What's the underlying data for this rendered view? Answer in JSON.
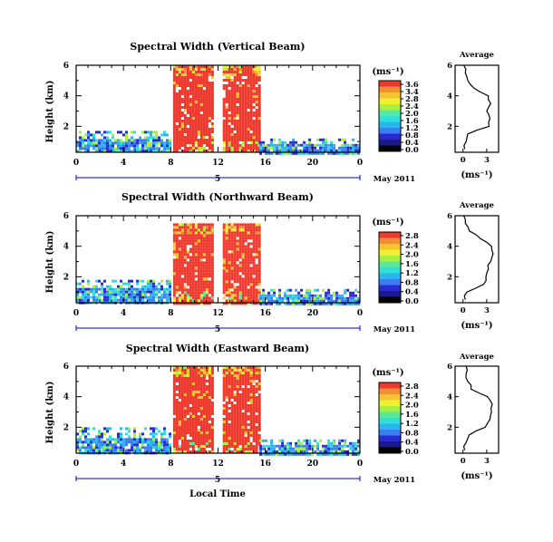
{
  "colors": {
    "palette": [
      "#ffffff",
      "#000000",
      "#1a1a8a",
      "#2a2ad0",
      "#3a7ef2",
      "#29b6f0",
      "#2fe0d8",
      "#58e8a0",
      "#a8f040",
      "#f0f030",
      "#f6c431",
      "#f08f30",
      "#ee3a2e"
    ],
    "line": "#000000",
    "time_bar": "#0000cc"
  },
  "global": {
    "x_axis_title": "Local Time"
  },
  "panels": [
    {
      "title": "Spectral Width (Vertical Beam)",
      "ylabel": "Height (km)",
      "x_tick_labels": [
        "0",
        "4",
        "8",
        "12",
        "16",
        "20",
        "0"
      ],
      "y_tick_labels": [
        "6",
        "4",
        "2"
      ],
      "date_mark": "5",
      "date_label": "May 2011",
      "colorbar": {
        "unit": "(ms⁻¹)",
        "labels": [
          "3.6",
          "3.4",
          "2.8",
          "2.4",
          "2.0",
          "1.6",
          "1.2",
          "0.8",
          "0.4",
          "0.0"
        ]
      },
      "avg": {
        "title": "Average",
        "unit": "(ms⁻¹)",
        "x_tick_labels": [
          "0",
          "3"
        ],
        "y_tick_labels": [
          "6",
          "4",
          "2"
        ]
      }
    },
    {
      "title": "Spectral Width (Northward Beam)",
      "ylabel": "Height (km)",
      "x_tick_labels": [
        "0",
        "4",
        "8",
        "12",
        "16",
        "20",
        "0"
      ],
      "y_tick_labels": [
        "6",
        "4",
        "2"
      ],
      "date_mark": "5",
      "date_label": "May 2011",
      "colorbar": {
        "unit": "(ms⁻¹)",
        "labels": [
          "2.8",
          "2.4",
          "2.0",
          "1.6",
          "1.2",
          "0.8",
          "0.4",
          "0.0"
        ]
      },
      "avg": {
        "title": "Average",
        "unit": "(ms⁻¹)",
        "x_tick_labels": [
          "0",
          "3"
        ],
        "y_tick_labels": [
          "6",
          "4",
          "2"
        ]
      }
    },
    {
      "title": "Spectral Width (Eastward Beam)",
      "ylabel": "Height (km)",
      "x_tick_labels": [
        "0",
        "4",
        "8",
        "12",
        "16",
        "20",
        "0"
      ],
      "y_tick_labels": [
        "6",
        "4",
        "2"
      ],
      "date_mark": "5",
      "date_label": "May 2011",
      "colorbar": {
        "unit": "(ms⁻¹)",
        "labels": [
          "2.8",
          "2.4",
          "2.0",
          "1.6",
          "1.2",
          "0.8",
          "0.4",
          "0.0"
        ]
      },
      "avg": {
        "title": "Average",
        "unit": "(ms⁻¹)",
        "x_tick_labels": [
          "0",
          "3"
        ],
        "y_tick_labels": [
          "6",
          "4",
          "2"
        ]
      }
    }
  ],
  "chart_data": [
    {
      "type": "heatmap",
      "title": "Spectral Width (Vertical Beam)",
      "xlabel": "",
      "ylabel": "Height (km)",
      "xlim": [
        0,
        24
      ],
      "ylim": [
        0.3,
        6
      ],
      "x_unit": "hour (LT)",
      "zlim": [
        0,
        3.6
      ],
      "grid": false,
      "regions": [
        {
          "name": "low-level band",
          "x": [
            0,
            8
          ],
          "y": [
            0.3,
            1.7
          ],
          "value": 0.8
        },
        {
          "name": "daytime convective block A",
          "x": [
            8.2,
            11.5
          ],
          "y": [
            0.3,
            6
          ],
          "value": 3.6
        },
        {
          "name": "daytime convective block B",
          "x": [
            12.4,
            15.5
          ],
          "y": [
            0.3,
            6
          ],
          "value": 3.6
        },
        {
          "name": "evening low-level band",
          "x": [
            15.5,
            24
          ],
          "y": [
            0.3,
            1.2
          ],
          "value": 0.5
        }
      ],
      "average_profile": {
        "x_unit": "ms^-1",
        "xlim": [
          -1,
          4.5
        ],
        "height": [
          0.5,
          1.0,
          1.5,
          2.0,
          2.5,
          3.0,
          3.5,
          4.0,
          4.5,
          5.0,
          5.5,
          6.0
        ],
        "width": [
          0.2,
          0.4,
          0.6,
          3.3,
          3.4,
          3.0,
          3.5,
          3.2,
          1.4,
          0.6,
          0.3,
          0.1
        ]
      }
    },
    {
      "type": "heatmap",
      "title": "Spectral Width (Northward Beam)",
      "xlabel": "",
      "ylabel": "Height (km)",
      "xlim": [
        0,
        24
      ],
      "ylim": [
        0.3,
        6
      ],
      "zlim": [
        0,
        2.8
      ],
      "grid": false,
      "regions": [
        {
          "name": "low-level band",
          "x": [
            0,
            8
          ],
          "y": [
            0.3,
            1.8
          ],
          "value": 0.8
        },
        {
          "name": "daytime convective block A",
          "x": [
            8.2,
            11.5
          ],
          "y": [
            0.3,
            5.5
          ],
          "value": 2.8
        },
        {
          "name": "daytime convective block B",
          "x": [
            12.4,
            15.5
          ],
          "y": [
            0.3,
            5.5
          ],
          "value": 2.8
        },
        {
          "name": "evening low-level band",
          "x": [
            15.5,
            24
          ],
          "y": [
            0.3,
            1.2
          ],
          "value": 0.5
        }
      ],
      "average_profile": {
        "x_unit": "ms^-1",
        "xlim": [
          -1,
          4.5
        ],
        "height": [
          0.5,
          1.0,
          1.5,
          2.0,
          2.5,
          3.0,
          3.5,
          4.0,
          4.5,
          5.0,
          5.5,
          6.0
        ],
        "width": [
          0.3,
          0.5,
          2.6,
          2.9,
          3.2,
          3.5,
          3.8,
          3.6,
          2.2,
          0.8,
          0.3,
          0.1
        ]
      }
    },
    {
      "type": "heatmap",
      "title": "Spectral Width (Eastward Beam)",
      "xlabel": "Local Time",
      "ylabel": "Height (km)",
      "xlim": [
        0,
        24
      ],
      "ylim": [
        0.3,
        6
      ],
      "zlim": [
        0,
        2.8
      ],
      "grid": false,
      "regions": [
        {
          "name": "low-level band",
          "x": [
            0,
            8
          ],
          "y": [
            0.3,
            2.0
          ],
          "value": 0.8
        },
        {
          "name": "daytime convective block A",
          "x": [
            8.2,
            11.5
          ],
          "y": [
            0.3,
            6
          ],
          "value": 2.8
        },
        {
          "name": "daytime convective block B",
          "x": [
            12.4,
            15.5
          ],
          "y": [
            0.3,
            6
          ],
          "value": 2.8
        },
        {
          "name": "evening low-level band",
          "x": [
            15.5,
            24
          ],
          "y": [
            0.3,
            1.2
          ],
          "value": 0.5
        }
      ],
      "average_profile": {
        "x_unit": "ms^-1",
        "xlim": [
          -1,
          4.5
        ],
        "height": [
          0.5,
          1.0,
          1.5,
          2.0,
          2.5,
          3.0,
          3.5,
          4.0,
          4.5,
          5.0,
          5.5,
          6.0
        ],
        "width": [
          0.2,
          0.4,
          0.8,
          2.8,
          3.4,
          3.6,
          3.7,
          3.1,
          1.0,
          0.6,
          0.4,
          0.4
        ]
      }
    }
  ]
}
